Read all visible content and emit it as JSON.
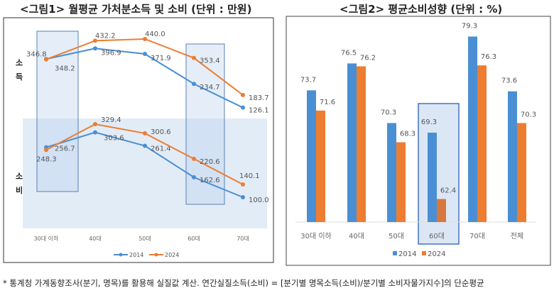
{
  "chart_data": [
    {
      "type": "line",
      "title": "<그림1> 월평균 가처분소득 및 소비 (단위 : 만원)",
      "categories": [
        "30대 이하",
        "40대",
        "50대",
        "60대",
        "70대"
      ],
      "panels": [
        {
          "label": "소득",
          "series": [
            {
              "name": "2014",
              "values": [
                348.2,
                396.9,
                371.9,
                234.7,
                126.1
              ]
            },
            {
              "name": "2024",
              "values": [
                346.8,
                432.2,
                440.0,
                353.4,
                183.7
              ]
            }
          ]
        },
        {
          "label": "소비",
          "series": [
            {
              "name": "2014",
              "values": [
                256.7,
                303.6,
                261.4,
                162.6,
                100.0
              ]
            },
            {
              "name": "2024",
              "values": [
                248.3,
                329.4,
                300.6,
                220.6,
                140.1
              ]
            }
          ]
        }
      ],
      "highlighted": [
        "30대 이하",
        "60대"
      ],
      "legend": "bottom",
      "grid": false
    },
    {
      "type": "bar",
      "title": "<그림2> 평균소비성향 (단위 : %)",
      "categories": [
        "30대 이하",
        "40대",
        "50대",
        "60대",
        "70대",
        "전체"
      ],
      "series": [
        {
          "name": "2014",
          "values": [
            73.7,
            76.5,
            70.3,
            69.3,
            79.3,
            73.6
          ]
        },
        {
          "name": "2024",
          "values": [
            71.6,
            76.2,
            68.3,
            62.4,
            76.3,
            70.3
          ]
        }
      ],
      "ylim": [
        60,
        80
      ],
      "highlighted": [
        "60대"
      ],
      "legend": "bottom",
      "grid": false
    }
  ],
  "colors": {
    "s2014": "#4a8fd4",
    "s2024": "#ed7d31",
    "highlight": "#dbe7f5",
    "box": "#4472c4"
  },
  "footnote": "* 통계청 가계동향조사(분기, 명목)를 활용해 실질값 계산. 연간실질소득(소비) = [분기별 명목소득(소비)/분기별 소비자물가지수]의 단순평균"
}
